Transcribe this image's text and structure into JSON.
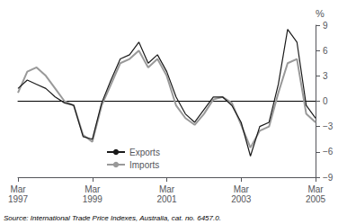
{
  "chart_data": {
    "type": "line",
    "ylabel": "%",
    "annotations": [
      "Source: International Trade Price Indexes, Australia, cat. no. 6457.0."
    ],
    "categories": [
      "Mar\n1997",
      null,
      null,
      null,
      null,
      null,
      null,
      null,
      "Mar\n1999",
      null,
      null,
      null,
      null,
      null,
      null,
      null,
      "Mar\n2001",
      null,
      null,
      null,
      null,
      null,
      null,
      null,
      "Mar\n2003",
      null,
      null,
      null,
      null,
      null,
      null,
      null,
      "Mar\n2005"
    ],
    "series": [
      {
        "name": "Exports",
        "color": "#1a1a1a",
        "values": [
          1.5,
          2.5,
          2.0,
          1.5,
          0.5,
          -0.2,
          -0.5,
          -4.2,
          -4.5,
          -0.2,
          2.5,
          5.0,
          5.5,
          7.0,
          4.5,
          5.5,
          3.5,
          0.5,
          -1.5,
          -2.5,
          -1.0,
          0.5,
          0.5,
          -0.5,
          -2.5,
          -6.5,
          -3.0,
          -2.5,
          2.0,
          8.5,
          7.0,
          -0.5,
          -2.0
        ]
      },
      {
        "name": "Imports",
        "color": "#999999",
        "values": [
          1.0,
          3.5,
          4.0,
          3.0,
          1.5,
          0.0,
          -0.5,
          -4.0,
          -4.8,
          -0.5,
          2.0,
          4.5,
          5.0,
          6.0,
          4.0,
          5.0,
          3.0,
          -0.5,
          -2.0,
          -2.8,
          -1.5,
          0.2,
          0.5,
          -0.2,
          -2.8,
          -5.5,
          -3.5,
          -3.0,
          1.0,
          4.5,
          5.0,
          -1.5,
          -2.5
        ]
      }
    ],
    "ylim": [
      -9,
      9
    ],
    "yticks": [
      {
        "value": -9,
        "label": "−9"
      },
      {
        "value": -6,
        "label": "−6"
      },
      {
        "value": -3,
        "label": "−3"
      },
      0,
      3,
      6,
      9
    ],
    "grid": false,
    "legend": "lower left"
  }
}
